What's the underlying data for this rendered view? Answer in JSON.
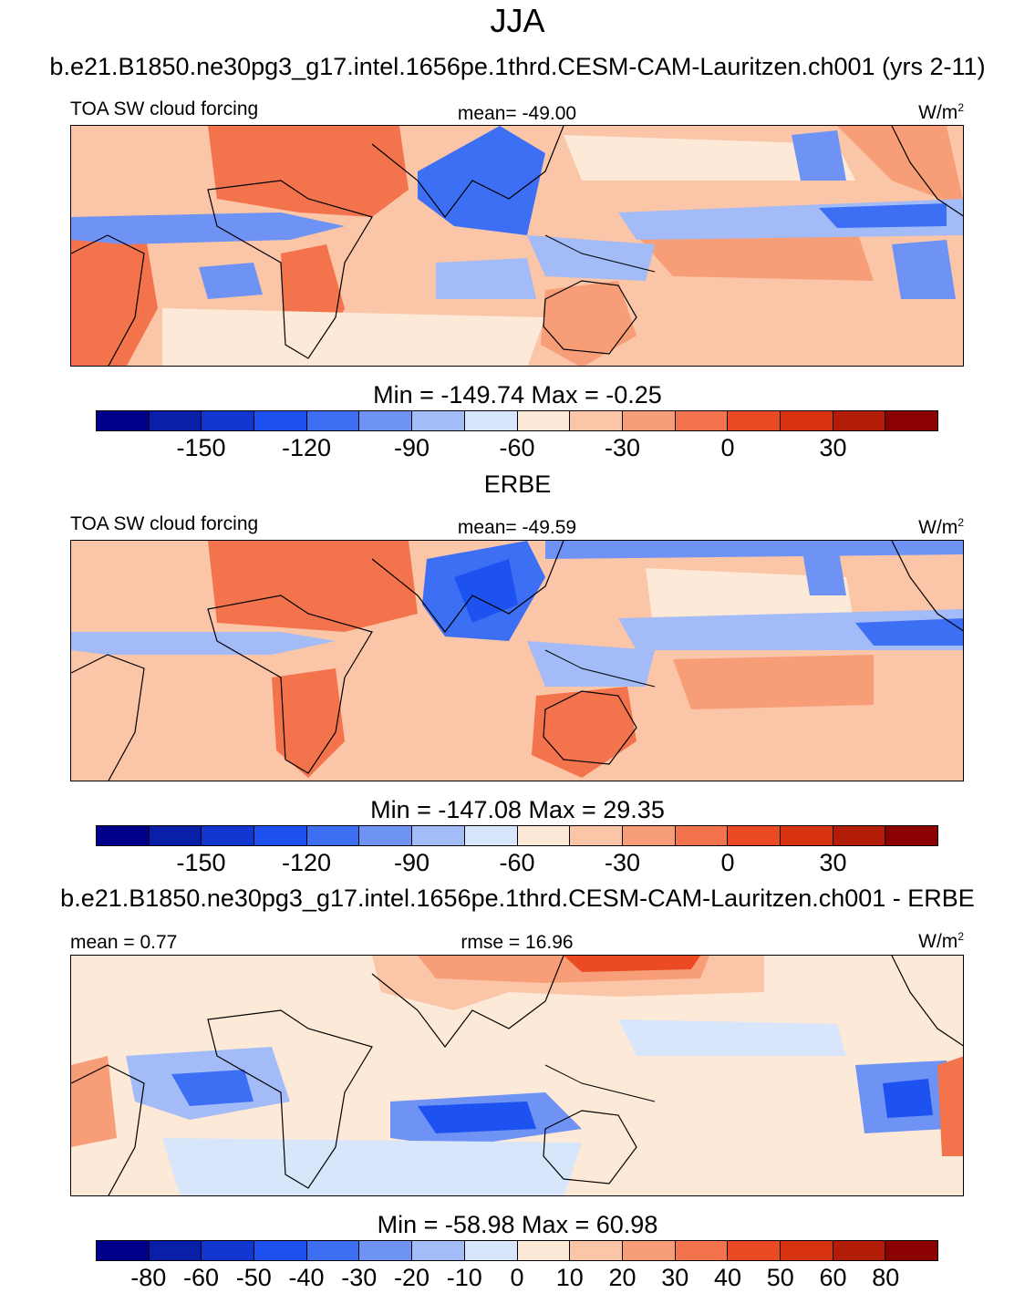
{
  "title": "JJA",
  "colors": {
    "abs_scale": [
      "#00008b",
      "#0a1fa8",
      "#1236d0",
      "#1e52f0",
      "#3d6ff5",
      "#6e93f5",
      "#a3bbf7",
      "#d7e6fb",
      "#fde9d7",
      "#fbc5a8",
      "#f79d77",
      "#f2734c",
      "#ec4a22",
      "#d8330f",
      "#b21d0a",
      "#8b0000"
    ],
    "diff_scale": [
      "#00008b",
      "#0a1fa8",
      "#1236d0",
      "#1e52f0",
      "#3d6ff5",
      "#6e93f5",
      "#a3bbf7",
      "#d7e6fb",
      "#fde9d7",
      "#fbc5a8",
      "#f79d77",
      "#f2734c",
      "#ec4a22",
      "#d8330f",
      "#b21d0a",
      "#8b0000"
    ],
    "coastline": "#000000"
  },
  "panels": [
    {
      "case_title": "b.e21.B1850.ne30pg3_g17.intel.1656pe.1thrd.CESM-CAM-Lauritzen.ch001 (yrs 2-11)",
      "left_label": "TOA SW cloud forcing",
      "center_label": "mean= -49.00",
      "units_label": "W/m",
      "units_sup": "2",
      "minmax": "Min = -149.74 Max =  -0.25",
      "ticks": [
        "-150",
        "-120",
        "-90",
        "-60",
        "-30",
        "0",
        "30"
      ]
    },
    {
      "case_title": "ERBE",
      "left_label": "TOA SW cloud forcing",
      "center_label": "mean= -49.59",
      "units_label": "W/m",
      "units_sup": "2",
      "minmax": "Min = -147.08 Max =  29.35",
      "ticks": [
        "-150",
        "-120",
        "-90",
        "-60",
        "-30",
        "0",
        "30"
      ]
    },
    {
      "case_title": "b.e21.B1850.ne30pg3_g17.intel.1656pe.1thrd.CESM-CAM-Lauritzen.ch001 - ERBE",
      "left_label": "mean =   0.77",
      "center_label": "rmse =  16.96",
      "units_label": "W/m",
      "units_sup": "2",
      "minmax": "Min = -58.98 Max =  60.98",
      "ticks": [
        "-80",
        "-60",
        "-50",
        "-40",
        "-30",
        "-20",
        "-10",
        "0",
        "10",
        "20",
        "30",
        "40",
        "50",
        "60",
        "80"
      ]
    }
  ]
}
